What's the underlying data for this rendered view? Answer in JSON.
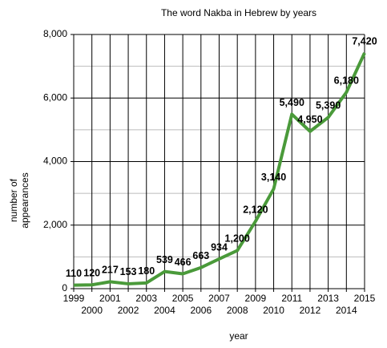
{
  "chart_data": {
    "type": "line",
    "title": "The word Nakba in Hebrew by years",
    "xlabel": "year",
    "ylabel": [
      "number of",
      "appearances"
    ],
    "x": [
      1999,
      2000,
      2001,
      2002,
      2003,
      2004,
      2005,
      2006,
      2007,
      2008,
      2009,
      2010,
      2011,
      2012,
      2013,
      2014,
      2015
    ],
    "series": [
      {
        "name": "appearances",
        "color": "#4a9a3a",
        "values": [
          110,
          120,
          217,
          153,
          180,
          539,
          466,
          663,
          934,
          1200,
          2120,
          3140,
          5490,
          4950,
          5390,
          6180,
          7420
        ],
        "value_labels": [
          "110",
          "120",
          "217",
          "153",
          "180",
          "539",
          "466",
          "663",
          "934",
          "1,200",
          "2,120",
          "3,140",
          "5,490",
          "4,950",
          "5,390",
          "6,180",
          "7,420"
        ]
      }
    ],
    "xlim": [
      1999,
      2015
    ],
    "xticks": [
      1999,
      2000,
      2001,
      2002,
      2003,
      2004,
      2005,
      2006,
      2007,
      2008,
      2009,
      2010,
      2011,
      2012,
      2013,
      2014,
      2015
    ],
    "ylim": [
      0,
      8000
    ],
    "yticks": [
      0,
      {
        "value": 2000,
        "label": "2,000"
      },
      {
        "value": 4000,
        "label": "4,000"
      },
      {
        "value": 6000,
        "label": "6,000"
      },
      {
        "value": 8000,
        "label": "8,000"
      }
    ],
    "minor_yticks": [
      1000,
      3000,
      5000,
      7000
    ],
    "grid": true
  }
}
